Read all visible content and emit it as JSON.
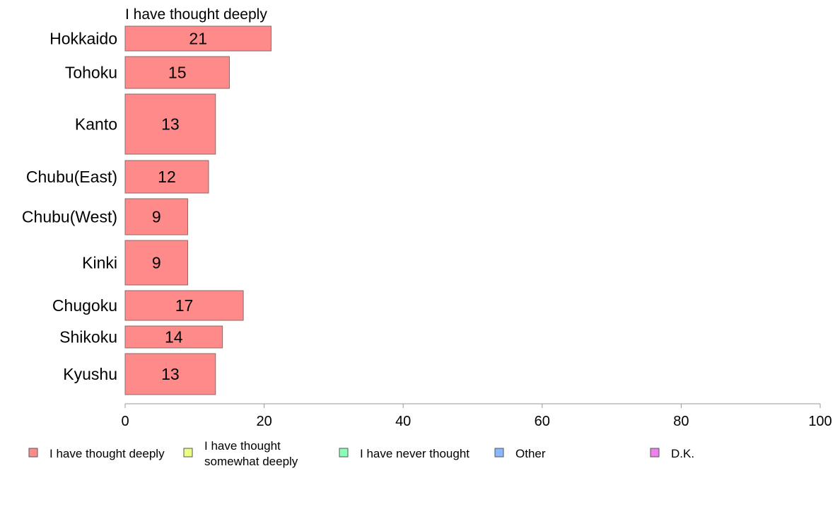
{
  "chart_data": {
    "type": "bar",
    "orientation": "horizontal",
    "stacked": true,
    "title": "I have thought deeply",
    "xlabel": "",
    "ylabel": "",
    "xlim": [
      0,
      100
    ],
    "xticks": [
      "0",
      "20",
      "40",
      "60",
      "80",
      "100"
    ],
    "categories": [
      "Hokkaido",
      "Tohoku",
      "Kanto",
      "Chubu(East)",
      "Chubu(West)",
      "Kinki",
      "Chugoku",
      "Shikoku",
      "Kyushu"
    ],
    "series": [
      {
        "name": "I have thought deeply",
        "color": "#ff8a8a",
        "values": [
          21,
          15,
          13,
          12,
          9,
          9,
          17,
          14,
          13
        ]
      }
    ],
    "legend": {
      "placement": "bottom",
      "items": [
        {
          "label_lines": [
            "I have thought deeply"
          ],
          "color": "#ff8a8a"
        },
        {
          "label_lines": [
            "I have thought",
            "somewhat deeply"
          ],
          "color": "#ecff85"
        },
        {
          "label_lines": [
            "I have never thought"
          ],
          "color": "#8affb5"
        },
        {
          "label_lines": [
            "Other"
          ],
          "color": "#8ab8ff"
        },
        {
          "label_lines": [
            "D.K."
          ],
          "color": "#ee80ee"
        }
      ]
    },
    "grid": false
  }
}
